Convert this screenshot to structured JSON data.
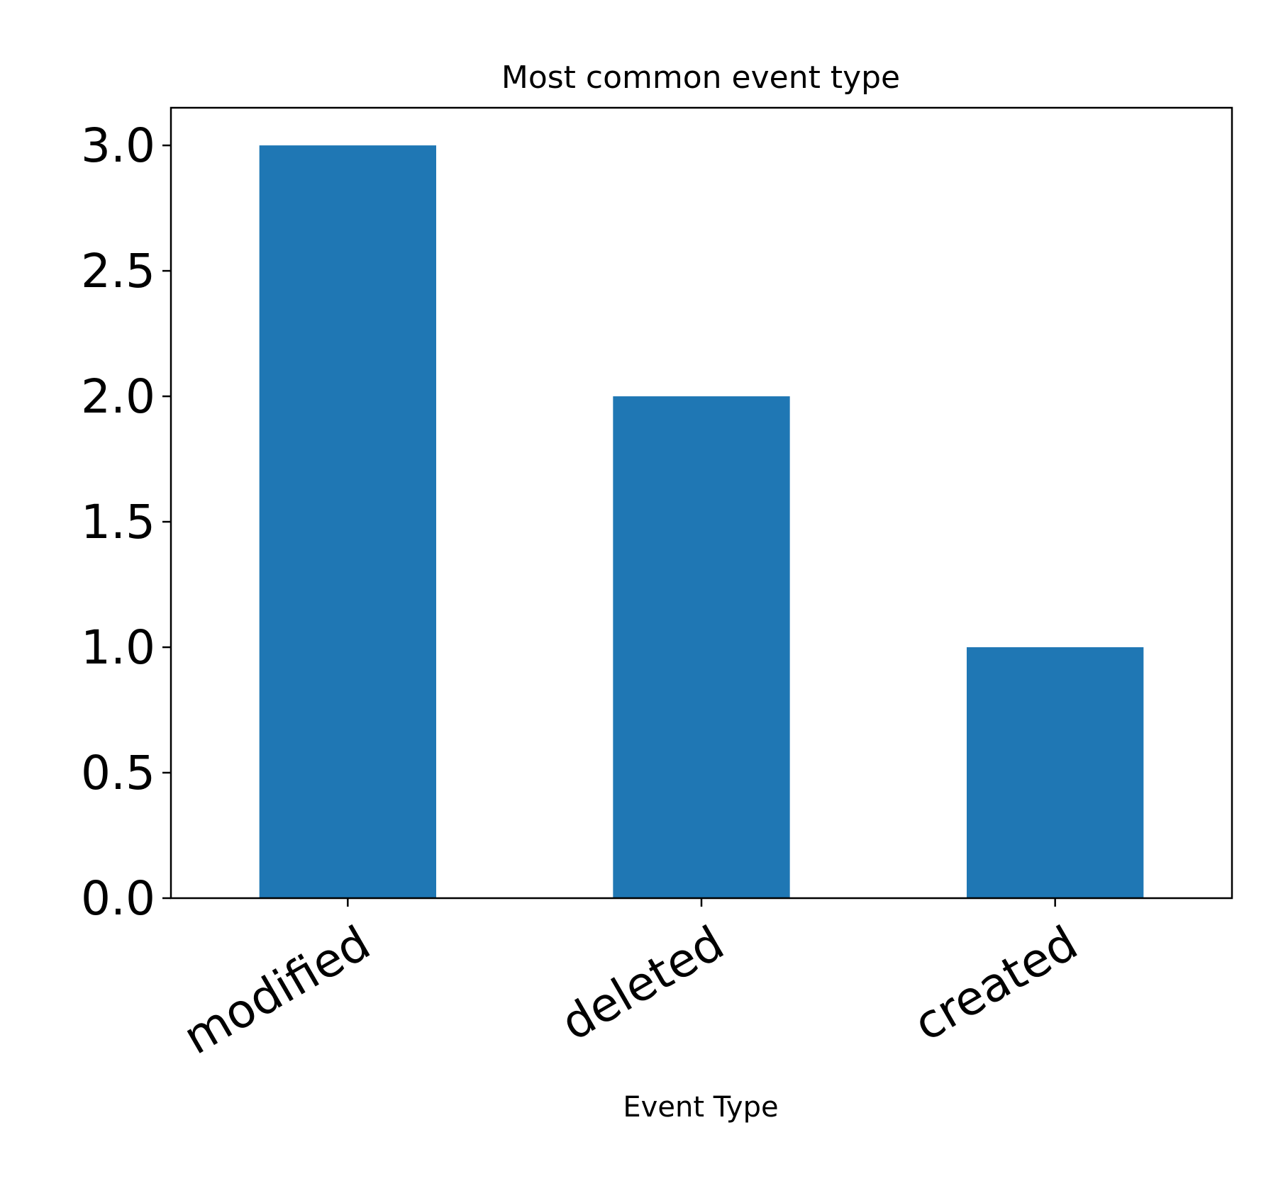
{
  "chart_data": {
    "type": "bar",
    "title": "Most common event type",
    "xlabel": "Event Type",
    "ylabel": "",
    "categories": [
      "modified",
      "deleted",
      "created"
    ],
    "values": [
      3,
      2,
      1
    ],
    "ylim": [
      0,
      3.15
    ],
    "yticks": [
      0.0,
      0.5,
      1.0,
      1.5,
      2.0,
      2.5,
      3.0
    ],
    "ytick_labels": [
      "0.0",
      "0.5",
      "1.0",
      "1.5",
      "2.0",
      "2.5",
      "3.0"
    ],
    "grid": false,
    "legend": "none",
    "bar_color": "#1f77b4"
  }
}
